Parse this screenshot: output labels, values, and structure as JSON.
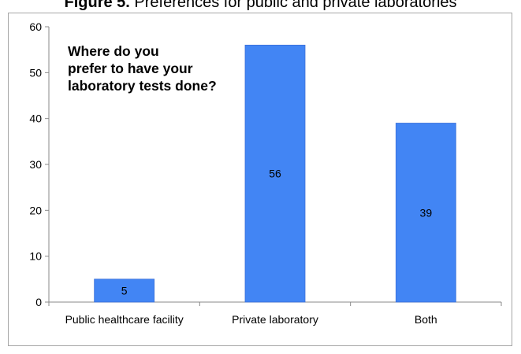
{
  "caption": {
    "figure_label": "Figure 5.",
    "text": " Preferences for public and private laboratories"
  },
  "colors": {
    "bar": "#4285f4",
    "bar_edge": "#3a6fd8",
    "axis": "#888888",
    "frame": "#a6a6a6"
  },
  "chart_data": {
    "type": "bar",
    "title": "Where do you prefer to have your laboratory tests done?",
    "title_lines": [
      "Where do you",
      "prefer to have your",
      "laboratory tests done?"
    ],
    "categories": [
      "Public healthcare facility",
      "Private laboratory",
      "Both"
    ],
    "values": [
      5,
      56,
      39
    ],
    "data_labels": [
      "5",
      "56",
      "39"
    ],
    "ylim": [
      0,
      60
    ],
    "yticks": [
      0,
      10,
      20,
      30,
      40,
      50,
      60
    ],
    "grid": false,
    "legend": "none",
    "xlabel": "",
    "ylabel": ""
  }
}
